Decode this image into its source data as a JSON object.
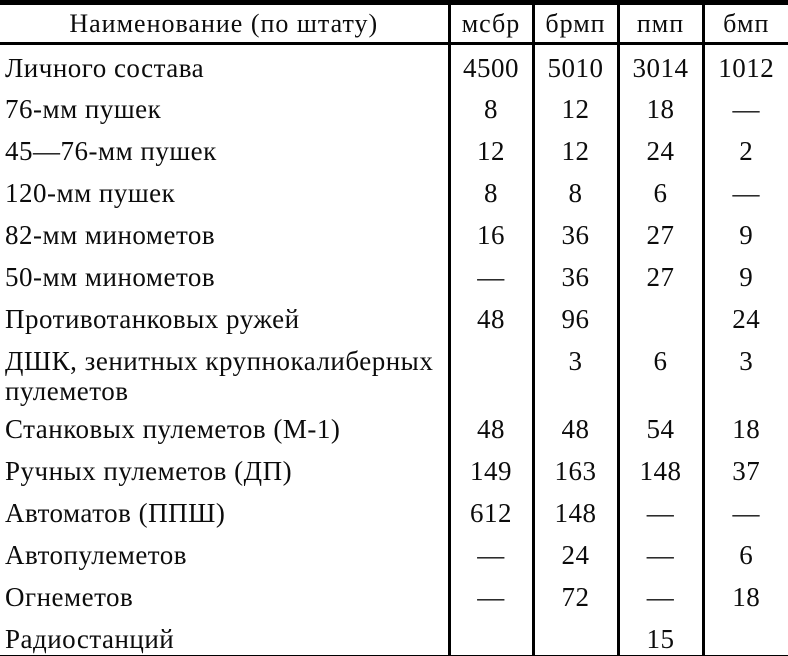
{
  "colors": {
    "paper": "#ffffff",
    "ink": "#0c0c0c",
    "border": "#000000"
  },
  "table": {
    "columns": [
      "Наименование (по штату)",
      "мсбр",
      "брмп",
      "пмп",
      "бмп"
    ],
    "rows": [
      {
        "label": "Личного состава",
        "values": [
          "4500",
          "5010",
          "3014",
          "1012"
        ]
      },
      {
        "label": "76-мм пушек",
        "values": [
          "8",
          "12",
          "18",
          "—"
        ]
      },
      {
        "label": "45—76-мм пушек",
        "values": [
          "12",
          "12",
          "24",
          "2"
        ]
      },
      {
        "label": "120-мм пушек",
        "values": [
          "8",
          "8",
          "6",
          "—"
        ]
      },
      {
        "label": "82-мм минометов",
        "values": [
          "16",
          "36",
          "27",
          "9"
        ]
      },
      {
        "label": "50-мм минометов",
        "values": [
          "—",
          "36",
          "27",
          "9"
        ]
      },
      {
        "label": "Противотанковых ружей",
        "values": [
          "48",
          "96",
          "",
          "24"
        ]
      },
      {
        "label": "ДШК, зенитных крупнокалиберных пулеметов",
        "values": [
          "",
          "3",
          "6",
          "3"
        ]
      },
      {
        "label": "Станковых пулеметов (М-1)",
        "values": [
          "48",
          "48",
          "54",
          "18"
        ]
      },
      {
        "label": "Ручных пулеметов (ДП)",
        "values": [
          "149",
          "163",
          "148",
          "37"
        ]
      },
      {
        "label": "Автоматов (ППШ)",
        "values": [
          "612",
          "148",
          "—",
          "—"
        ]
      },
      {
        "label": "Автопулеметов",
        "values": [
          "—",
          "24",
          "—",
          "6"
        ]
      },
      {
        "label": "Огнеметов",
        "values": [
          "—",
          "72",
          "—",
          "18"
        ]
      },
      {
        "label": "Радиостанций",
        "values": [
          "",
          "",
          "15",
          ""
        ]
      }
    ]
  }
}
